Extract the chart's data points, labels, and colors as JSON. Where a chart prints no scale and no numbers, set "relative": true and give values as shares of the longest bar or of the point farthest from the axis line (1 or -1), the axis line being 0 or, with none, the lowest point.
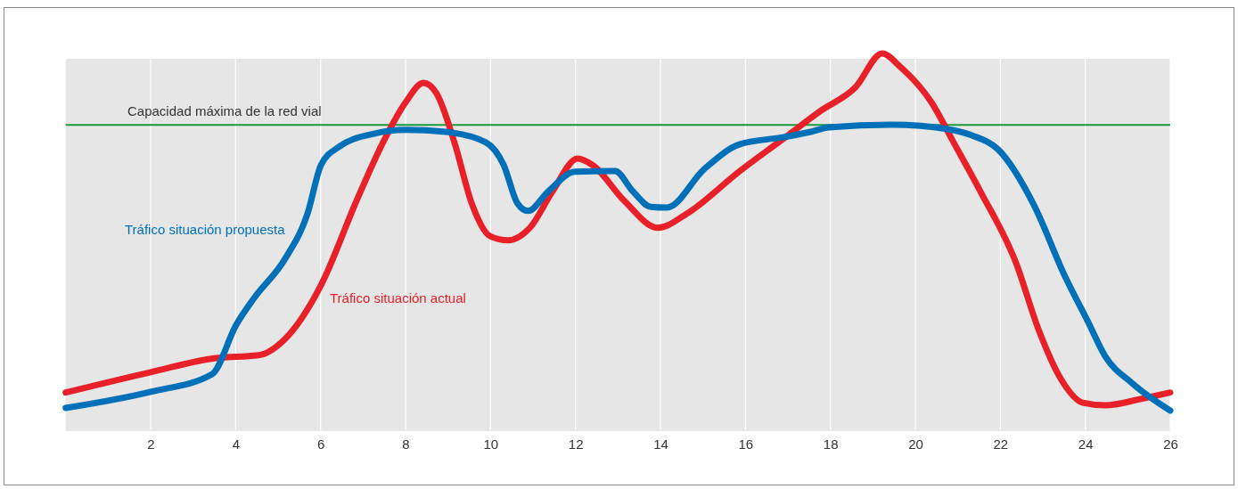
{
  "chart_data": {
    "type": "line",
    "relative": true,
    "xlim": [
      0,
      26
    ],
    "xticks": [
      2,
      4,
      6,
      8,
      10,
      12,
      14,
      16,
      18,
      20,
      22,
      24,
      26
    ],
    "grid": "x",
    "legend": false,
    "line_style": "solid",
    "marker": "none",
    "ref_lines": [
      {
        "axis": "y",
        "value": 0.81,
        "label": "Capacidad máxima de la red vial",
        "color": "#1a9a3c"
      }
    ],
    "series": [
      {
        "name": "Tráfico situación actual",
        "color": "#e8202a",
        "x": [
          0,
          2,
          3.49,
          4.54,
          5.17,
          6.01,
          6.85,
          7.47,
          8,
          8.42,
          8.73,
          9.15,
          9.57,
          9.99,
          10.41,
          10.94,
          11.46,
          12.05,
          12.4,
          13.14,
          13.94,
          14.61,
          15.87,
          16.91,
          17.75,
          18.59,
          19.22,
          19.64,
          20.38,
          20.9,
          21.53,
          22.37,
          22.9,
          23.42,
          23.94,
          24.47,
          25.31,
          26
        ],
        "values": [
          0.1,
          0.154,
          0.191,
          0.199,
          0.243,
          0.385,
          0.61,
          0.764,
          0.87,
          0.922,
          0.894,
          0.764,
          0.598,
          0.515,
          0.504,
          0.539,
          0.634,
          0.721,
          0.704,
          0.61,
          0.537,
          0.574,
          0.688,
          0.775,
          0.846,
          0.91,
          1,
          0.965,
          0.87,
          0.764,
          0.634,
          0.444,
          0.267,
          0.137,
          0.073,
          0.066,
          0.083,
          0.1
        ]
      },
      {
        "name": "Tráfico situación propuesta",
        "color": "#0070b8",
        "x": [
          0,
          2,
          3.45,
          4.01,
          4.43,
          5.17,
          5.69,
          6.01,
          6.43,
          7.26,
          8,
          8.94,
          9.89,
          10.31,
          10.63,
          10.88,
          11.36,
          11.99,
          12.93,
          13.35,
          13.77,
          14.15,
          15.03,
          15.87,
          16.91,
          17.54,
          17.96,
          19.43,
          20.48,
          21.32,
          21.95,
          22.79,
          23.52,
          24.05,
          24.47,
          25.1,
          26
        ],
        "values": [
          0.059,
          0.102,
          0.149,
          0.279,
          0.35,
          0.456,
          0.574,
          0.704,
          0.752,
          0.787,
          0.797,
          0.792,
          0.764,
          0.704,
          0.603,
          0.582,
          0.634,
          0.686,
          0.688,
          0.634,
          0.593,
          0.591,
          0.693,
          0.759,
          0.778,
          0.792,
          0.804,
          0.811,
          0.804,
          0.783,
          0.745,
          0.598,
          0.409,
          0.291,
          0.196,
          0.125,
          0.052
        ]
      }
    ]
  }
}
